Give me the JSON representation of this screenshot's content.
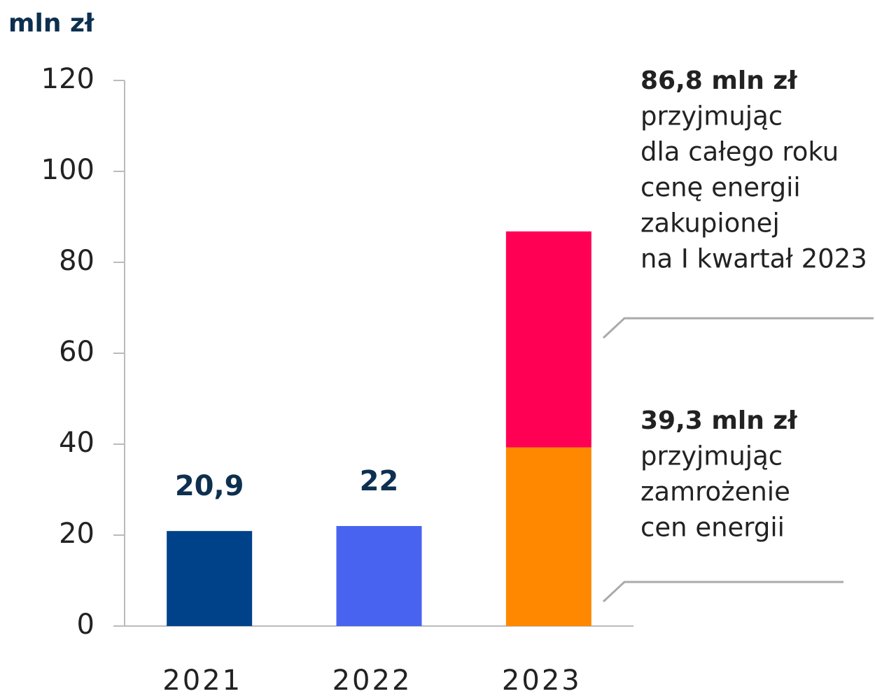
{
  "chart_data": {
    "type": "bar",
    "y_label": "mln zł",
    "categories": [
      "2021",
      "2022",
      "2023"
    ],
    "series": [
      {
        "colors": [
          "#00428a",
          "#4763f0",
          "#ff8800"
        ],
        "values": [
          20.9,
          22,
          39.3
        ],
        "value_labels": [
          "20,9",
          "22",
          null
        ]
      },
      {
        "color": "#ff0055",
        "values": [
          null,
          null,
          47.5
        ]
      }
    ],
    "ylim": [
      0,
      120
    ],
    "yticks": [
      0,
      20,
      40,
      60,
      80,
      100,
      120
    ],
    "annotations": [
      {
        "lines": [
          "86,8 mln zł",
          "przyjmując",
          "dla całego roku",
          "cenę energii",
          "zakupionej",
          "na I kwartał 2023"
        ]
      },
      {
        "lines": [
          "39,3 mln zł",
          "przyjmując",
          "zamrożenie",
          "cen energii"
        ]
      }
    ]
  }
}
